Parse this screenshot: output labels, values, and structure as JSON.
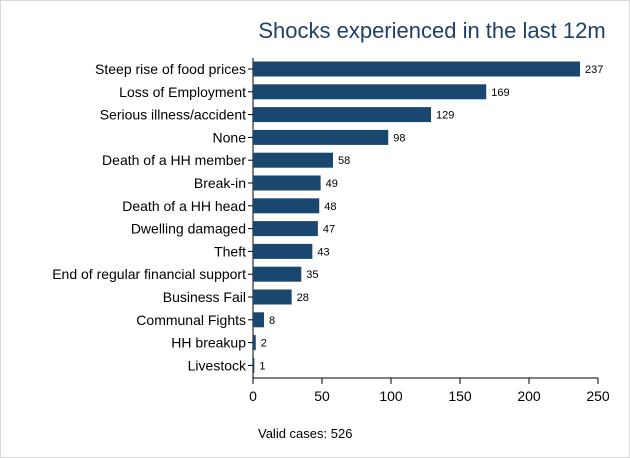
{
  "chart_data": {
    "type": "bar",
    "orientation": "horizontal",
    "title": "Shocks experienced in the last 12m",
    "note": "Valid cases: 526",
    "categories": [
      "Steep rise of food prices",
      "Loss of Employment",
      "Serious illness/accident",
      "None",
      "Death of a HH member",
      "Break-in",
      "Death of a HH head",
      "Dwelling damaged",
      "Theft",
      "End of regular financial support",
      "Business Fail",
      "Communal Fights",
      "HH breakup",
      "Livestock"
    ],
    "values": [
      237,
      169,
      129,
      98,
      58,
      49,
      48,
      47,
      43,
      35,
      28,
      8,
      2,
      1
    ],
    "xlim": [
      0,
      250
    ],
    "xticks": [
      0,
      50,
      100,
      150,
      200,
      250
    ],
    "xlabel": "",
    "ylabel": "",
    "grid": false,
    "legend": "none",
    "colors": {
      "bar": "#1a476f",
      "title": "#1f3f6a",
      "text": "#000000",
      "axis": "#000000",
      "plot_background": "#ffffff",
      "outer_background": "#ffffff",
      "frame": "#d9d9d9"
    }
  }
}
